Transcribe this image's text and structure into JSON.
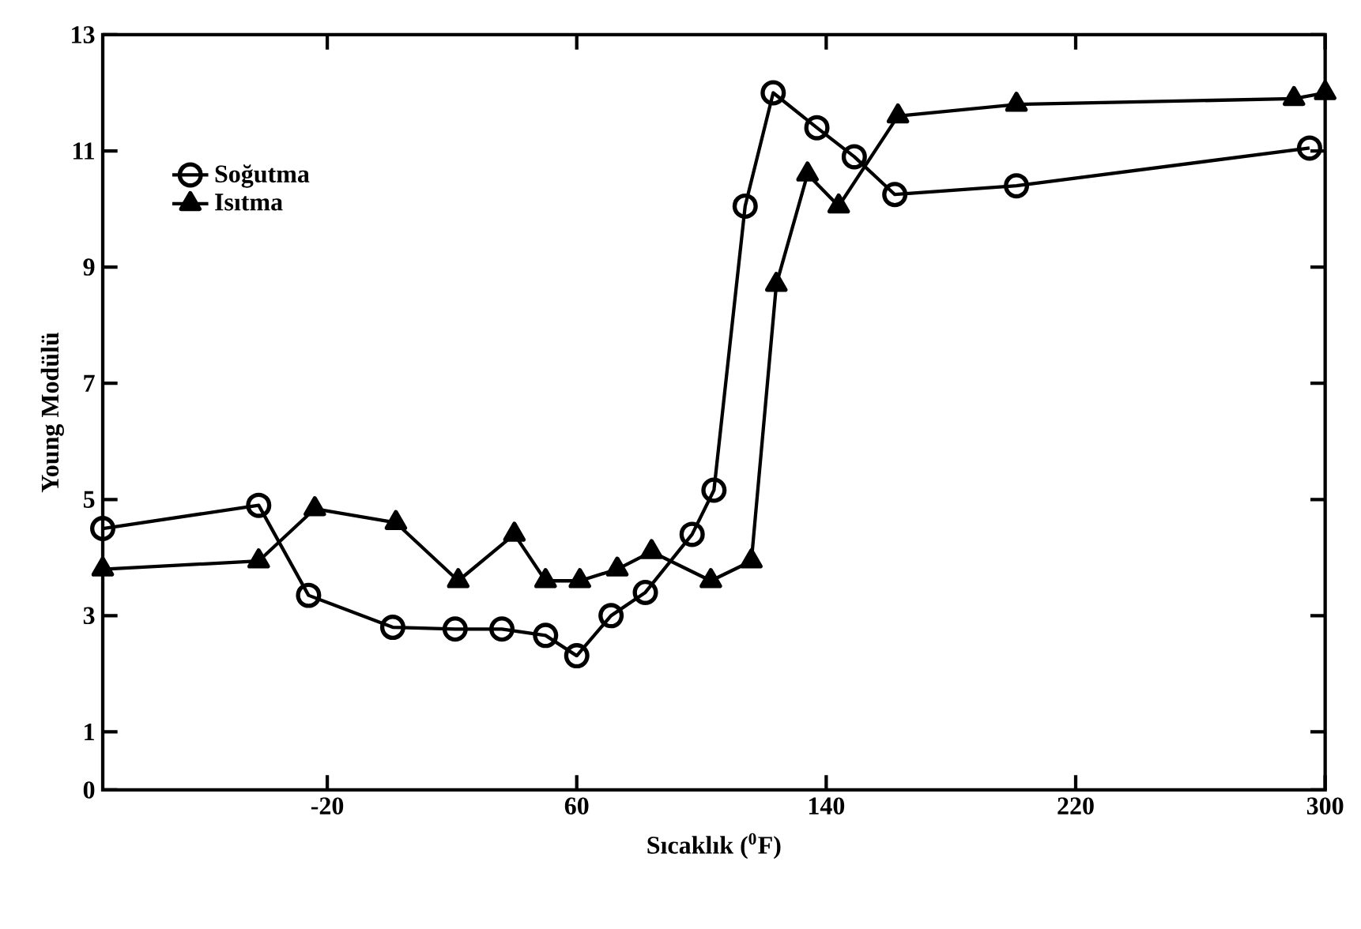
{
  "chart_data": {
    "type": "line",
    "xlabel": "Sıcaklık ($^{0}$F)",
    "ylabel": "Young Modülü",
    "xlim": [
      -92,
      300
    ],
    "ylim": [
      0,
      13
    ],
    "xticks": [
      -20,
      60,
      140,
      220,
      300
    ],
    "yticks": [
      0,
      1,
      3,
      5,
      7,
      9,
      11,
      13
    ],
    "legend": "top left",
    "line_style": "solid",
    "series": [
      {
        "name": "Soğutma",
        "color": "#000000",
        "marker": "circle",
        "x": [
          -92,
          -42,
          -26,
          1,
          21,
          36,
          50,
          60,
          71,
          82,
          97,
          104,
          114,
          123,
          137,
          149,
          162,
          201,
          295
        ],
        "values": [
          4.5,
          4.9,
          3.35,
          2.8,
          2.77,
          2.77,
          2.66,
          2.31,
          3.0,
          3.4,
          4.4,
          5.16,
          10.05,
          12.0,
          11.4,
          10.9,
          10.25,
          10.4,
          11.05
        ]
      },
      {
        "name": "Isıtma",
        "color": "#000000",
        "marker": "triangle",
        "x": [
          -92,
          -42,
          -24,
          2,
          22,
          40,
          50,
          61,
          73,
          84,
          103,
          116,
          124,
          134,
          144,
          163,
          201,
          290,
          300
        ],
        "values": [
          3.8,
          3.94,
          4.84,
          4.6,
          3.6,
          4.4,
          3.6,
          3.6,
          3.8,
          4.1,
          3.6,
          3.94,
          8.7,
          10.6,
          10.05,
          11.6,
          11.8,
          11.9,
          12.0
        ]
      }
    ]
  }
}
